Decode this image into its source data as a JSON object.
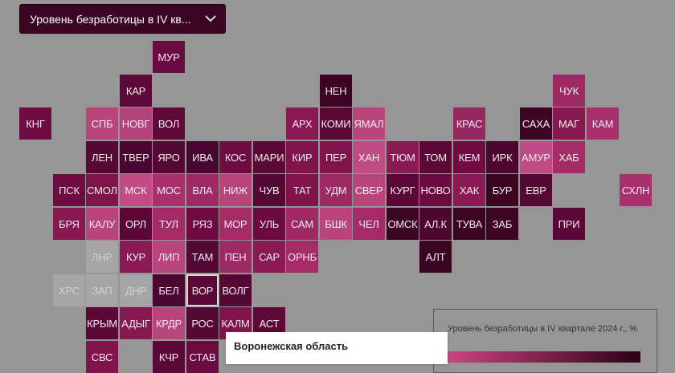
{
  "dropdown": {
    "label": "Уровень безработицы в IV кв...",
    "icon": "chevron-down-icon"
  },
  "legend": {
    "title": "Уровень безработицы в IV квартале 2024 г., %",
    "gradient_from": "#c9457f",
    "gradient_to": "#2a0216"
  },
  "tooltip": {
    "region": "Воронежская область"
  },
  "colors": {
    "background": "#969696",
    "no_data": "#a5a5a5",
    "tile_text": "#f4e9ef"
  },
  "regions": [
    {
      "code": "МУР",
      "col": 4,
      "row": 0,
      "color": "#6a0b3f"
    },
    {
      "code": "КАР",
      "col": 3,
      "row": 1,
      "color": "#5d0937"
    },
    {
      "code": "НЕН",
      "col": 9,
      "row": 1,
      "color": "#3a0422"
    },
    {
      "code": "ЧУК",
      "col": 16,
      "row": 1,
      "color": "#9d2a62"
    },
    {
      "code": "КНГ",
      "col": 0,
      "row": 2,
      "color": "#6e0c42"
    },
    {
      "code": "СПБ",
      "col": 2,
      "row": 2,
      "color": "#b8467a"
    },
    {
      "code": "НОВГ",
      "col": 3,
      "row": 2,
      "color": "#b2427a"
    },
    {
      "code": "ВОЛ",
      "col": 4,
      "row": 2,
      "color": "#5e0938"
    },
    {
      "code": "АРХ",
      "col": 8,
      "row": 2,
      "color": "#8a1a53"
    },
    {
      "code": "КОМИ",
      "col": 9,
      "row": 2,
      "color": "#5b0836"
    },
    {
      "code": "ЯМАЛ",
      "col": 10,
      "row": 2,
      "color": "#b8467a"
    },
    {
      "code": "КРАС",
      "col": 13,
      "row": 2,
      "color": "#952761"
    },
    {
      "code": "САХА",
      "col": 15,
      "row": 2,
      "color": "#3e0424"
    },
    {
      "code": "МАГ",
      "col": 16,
      "row": 2,
      "color": "#861950"
    },
    {
      "code": "КАМ",
      "col": 17,
      "row": 2,
      "color": "#a8306c"
    },
    {
      "code": "ЛЕН",
      "col": 2,
      "row": 3,
      "color": "#580835"
    },
    {
      "code": "ТВЕР",
      "col": 3,
      "row": 3,
      "color": "#4a0630"
    },
    {
      "code": "ЯРО",
      "col": 4,
      "row": 3,
      "color": "#540834"
    },
    {
      "code": "ИВА",
      "col": 5,
      "row": 3,
      "color": "#470630"
    },
    {
      "code": "КОС",
      "col": 6,
      "row": 3,
      "color": "#6e0c42"
    },
    {
      "code": "МАРИ",
      "col": 7,
      "row": 3,
      "color": "#5b0836"
    },
    {
      "code": "КИР",
      "col": 8,
      "row": 3,
      "color": "#7e1449"
    },
    {
      "code": "ПЕР",
      "col": 9,
      "row": 3,
      "color": "#7e1449"
    },
    {
      "code": "ХАН",
      "col": 10,
      "row": 3,
      "color": "#c04a83"
    },
    {
      "code": "ТЮМ",
      "col": 11,
      "row": 3,
      "color": "#8a1a53"
    },
    {
      "code": "ТОМ",
      "col": 12,
      "row": 3,
      "color": "#5b0836"
    },
    {
      "code": "КЕМ",
      "col": 13,
      "row": 3,
      "color": "#6e0c42"
    },
    {
      "code": "ИРК",
      "col": 14,
      "row": 3,
      "color": "#4c0630"
    },
    {
      "code": "АМУР",
      "col": 15,
      "row": 3,
      "color": "#c04a83"
    },
    {
      "code": "ХАБ",
      "col": 16,
      "row": 3,
      "color": "#a32c66"
    },
    {
      "code": "ПСК",
      "col": 1,
      "row": 4,
      "color": "#6e0c42"
    },
    {
      "code": "СМОЛ",
      "col": 2,
      "row": 4,
      "color": "#7e1449"
    },
    {
      "code": "МСК",
      "col": 3,
      "row": 4,
      "color": "#c24b85"
    },
    {
      "code": "МОС",
      "col": 4,
      "row": 4,
      "color": "#a8306c"
    },
    {
      "code": "ВЛА",
      "col": 5,
      "row": 4,
      "color": "#9d2a62"
    },
    {
      "code": "НИЖ",
      "col": 6,
      "row": 4,
      "color": "#b8467a"
    },
    {
      "code": "ЧУВ",
      "col": 7,
      "row": 4,
      "color": "#540834"
    },
    {
      "code": "ТАТ",
      "col": 8,
      "row": 4,
      "color": "#7e1449"
    },
    {
      "code": "УДМ",
      "col": 9,
      "row": 4,
      "color": "#9d2a62"
    },
    {
      "code": "СВЕР",
      "col": 10,
      "row": 4,
      "color": "#b8467a"
    },
    {
      "code": "КУРГ",
      "col": 11,
      "row": 4,
      "color": "#5b0836"
    },
    {
      "code": "НОВО",
      "col": 12,
      "row": 4,
      "color": "#6a0b3f"
    },
    {
      "code": "ХАК",
      "col": 13,
      "row": 4,
      "color": "#8a1a53"
    },
    {
      "code": "БУР",
      "col": 14,
      "row": 4,
      "color": "#3a0422"
    },
    {
      "code": "ЕВР",
      "col": 15,
      "row": 4,
      "color": "#540834"
    },
    {
      "code": "СХЛН",
      "col": 18,
      "row": 4,
      "color": "#a8306c"
    },
    {
      "code": "БРЯ",
      "col": 1,
      "row": 5,
      "color": "#861950"
    },
    {
      "code": "КАЛУ",
      "col": 2,
      "row": 5,
      "color": "#b8467a"
    },
    {
      "code": "ОРЛ",
      "col": 3,
      "row": 5,
      "color": "#5b0836"
    },
    {
      "code": "ТУЛ",
      "col": 4,
      "row": 5,
      "color": "#a32c66"
    },
    {
      "code": "РЯЗ",
      "col": 5,
      "row": 5,
      "color": "#6e0c42"
    },
    {
      "code": "МОР",
      "col": 6,
      "row": 5,
      "color": "#a32c66"
    },
    {
      "code": "УЛЬ",
      "col": 7,
      "row": 5,
      "color": "#6a0b3f"
    },
    {
      "code": "САМ",
      "col": 8,
      "row": 5,
      "color": "#9d2a62"
    },
    {
      "code": "БШК",
      "col": 9,
      "row": 5,
      "color": "#b8467a"
    },
    {
      "code": "ЧЕЛ",
      "col": 10,
      "row": 5,
      "color": "#a32c66"
    },
    {
      "code": "ОМСК",
      "col": 11,
      "row": 5,
      "color": "#3e0424"
    },
    {
      "code": "АЛ.К",
      "col": 12,
      "row": 5,
      "color": "#4c0630"
    },
    {
      "code": "ТУВА",
      "col": 13,
      "row": 5,
      "color": "#3a0422"
    },
    {
      "code": "ЗАБ",
      "col": 14,
      "row": 5,
      "color": "#3e0424"
    },
    {
      "code": "ПРИ",
      "col": 16,
      "row": 5,
      "color": "#5b0836"
    },
    {
      "code": "ЛНР",
      "col": 2,
      "row": 6,
      "color": "#a5a5a5"
    },
    {
      "code": "КУР",
      "col": 3,
      "row": 6,
      "color": "#8a1a53"
    },
    {
      "code": "ЛИП",
      "col": 4,
      "row": 6,
      "color": "#b8467a"
    },
    {
      "code": "ТАМ",
      "col": 5,
      "row": 6,
      "color": "#540834"
    },
    {
      "code": "ПЕН",
      "col": 6,
      "row": 6,
      "color": "#9d2a62"
    },
    {
      "code": "САР",
      "col": 7,
      "row": 6,
      "color": "#8a1a53"
    },
    {
      "code": "ОРНБ",
      "col": 8,
      "row": 6,
      "color": "#a32c66"
    },
    {
      "code": "АЛТ",
      "col": 12,
      "row": 6,
      "color": "#3a0422"
    },
    {
      "code": "ХРС",
      "col": 1,
      "row": 7,
      "color": "#a5a5a5"
    },
    {
      "code": "ЗАП",
      "col": 2,
      "row": 7,
      "color": "#a5a5a5"
    },
    {
      "code": "ДНР",
      "col": 3,
      "row": 7,
      "color": "#a5a5a5"
    },
    {
      "code": "БЕЛ",
      "col": 4,
      "row": 7,
      "color": "#4c0630"
    },
    {
      "code": "ВОР",
      "col": 5,
      "row": 7,
      "color": "#5b0836",
      "selected": true
    },
    {
      "code": "ВОЛГ",
      "col": 6,
      "row": 7,
      "color": "#540834"
    },
    {
      "code": "КРЫМ",
      "col": 2,
      "row": 8,
      "color": "#5b0836"
    },
    {
      "code": "АДЫГ",
      "col": 3,
      "row": 8,
      "color": "#861950"
    },
    {
      "code": "КРДР",
      "col": 4,
      "row": 8,
      "color": "#b8467a"
    },
    {
      "code": "РОС",
      "col": 5,
      "row": 8,
      "color": "#540834"
    },
    {
      "code": "КАЛМ",
      "col": 6,
      "row": 8,
      "color": "#7e1449"
    },
    {
      "code": "АСТ",
      "col": 7,
      "row": 8,
      "color": "#5e0938"
    },
    {
      "code": "СВС",
      "col": 2,
      "row": 9,
      "color": "#7e1449"
    },
    {
      "code": "КЧР",
      "col": 4,
      "row": 9,
      "color": "#5b0836"
    },
    {
      "code": "СТАВ",
      "col": 5,
      "row": 9,
      "color": "#6a0b3f"
    }
  ]
}
